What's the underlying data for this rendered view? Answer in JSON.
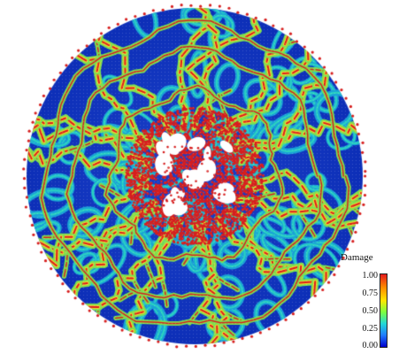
{
  "figure": {
    "colors": {
      "background": "#ffffff",
      "crack": "#d71f1f",
      "low": "#0d2fb8",
      "mid_low": "#1aa3d6",
      "mid": "#2ad3c0",
      "mid_high": "#7fe04f"
    },
    "colorbar": {
      "title": "Damage",
      "ticks": [
        "1.00",
        "0.75",
        "0.50",
        "0.25",
        "0.00"
      ]
    }
  }
}
